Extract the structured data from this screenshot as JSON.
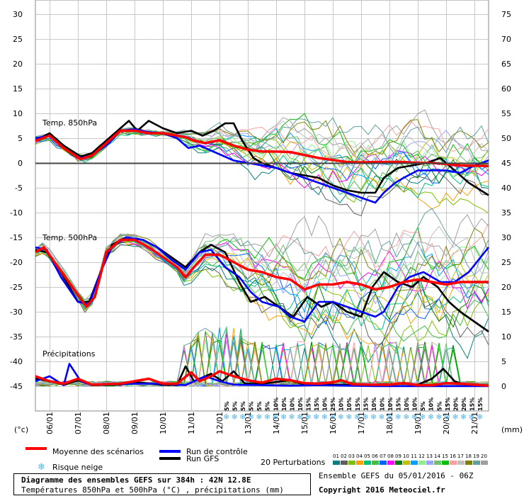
{
  "chart_data": {
    "type": "line",
    "left_axis": {
      "unit": "(°c)",
      "ticks": [
        30,
        25,
        20,
        15,
        10,
        5,
        0,
        -5,
        -10,
        -15,
        -20,
        -25,
        -30,
        -35,
        -40,
        -45
      ]
    },
    "right_axis": {
      "unit": "(mm)",
      "ticks": [
        75,
        70,
        65,
        60,
        55,
        50,
        45,
        40,
        35,
        30,
        25,
        20,
        15,
        10,
        5,
        0
      ]
    },
    "dates": [
      "06/01",
      "07/01",
      "08/01",
      "09/01",
      "10/01",
      "11/01",
      "12/01",
      "13/01",
      "14/01",
      "15/01",
      "16/01",
      "17/01",
      "18/01",
      "19/01",
      "20/01",
      "21/01"
    ],
    "x_range_days": [
      0,
      16
    ],
    "panels": {
      "t850": {
        "label": "Temp. 850hPa",
        "zero_line": 0
      },
      "t500": {
        "label": "Temp. 500hPa"
      },
      "precip": {
        "label": "Précipitations"
      }
    },
    "snow_risk_pct": [
      "5%",
      "5%",
      "5%",
      "5%",
      "5%",
      "5%",
      "10%",
      "10%",
      "10%",
      "10%",
      "15%",
      "15%",
      "10%",
      "25%",
      "10%",
      "10%",
      "15%",
      "15%",
      "10%",
      "10%",
      "10%",
      "15%",
      "10%",
      "10%",
      "5%",
      "10%",
      "5%",
      "15%",
      "20%",
      "20%",
      "15%",
      "15%"
    ],
    "series": [
      {
        "name": "Moyenne des scénarios",
        "color": "#ff0000",
        "t850": [
          [
            0,
            4.5
          ],
          [
            0.5,
            5.5
          ],
          [
            1,
            3
          ],
          [
            1.6,
            0.8
          ],
          [
            2,
            1.5
          ],
          [
            2.6,
            4.5
          ],
          [
            3,
            6.5
          ],
          [
            3.5,
            6.5
          ],
          [
            4,
            6
          ],
          [
            4.5,
            6
          ],
          [
            5,
            5.5
          ],
          [
            5.3,
            5.2
          ],
          [
            5.6,
            4.5
          ],
          [
            6,
            4
          ],
          [
            6.5,
            4.6
          ],
          [
            7,
            3.5
          ],
          [
            7.5,
            2.7
          ],
          [
            8,
            2.3
          ],
          [
            8.5,
            2.3
          ],
          [
            9,
            2.2
          ],
          [
            9.5,
            1.6
          ],
          [
            10,
            1
          ],
          [
            10.5,
            0.6
          ],
          [
            11,
            0.2
          ],
          [
            11.5,
            0.1
          ],
          [
            12,
            0.2
          ],
          [
            12.5,
            0.2
          ],
          [
            13,
            0.2
          ],
          [
            13.5,
            0
          ],
          [
            14,
            0
          ],
          [
            14.5,
            -0.2
          ],
          [
            15,
            -0.5
          ],
          [
            16,
            -0.6
          ]
        ],
        "t500": [
          [
            0,
            -18
          ],
          [
            0.3,
            -17
          ],
          [
            0.8,
            -21
          ],
          [
            1.3,
            -25
          ],
          [
            1.8,
            -29
          ],
          [
            2.1,
            -27
          ],
          [
            2.5,
            -18
          ],
          [
            3,
            -15.5
          ],
          [
            3.5,
            -15.5
          ],
          [
            4,
            -17
          ],
          [
            4.5,
            -19
          ],
          [
            5,
            -21
          ],
          [
            5.3,
            -23
          ],
          [
            5.6,
            -21
          ],
          [
            6,
            -18.5
          ],
          [
            6.5,
            -18.5
          ],
          [
            7,
            -20
          ],
          [
            7.5,
            -21.5
          ],
          [
            8,
            -22
          ],
          [
            8.5,
            -23
          ],
          [
            9,
            -23.5
          ],
          [
            9.5,
            -25.5
          ],
          [
            10,
            -24.5
          ],
          [
            10.5,
            -24.5
          ],
          [
            11,
            -24
          ],
          [
            11.5,
            -24.5
          ],
          [
            12,
            -25.5
          ],
          [
            12.5,
            -25
          ],
          [
            13,
            -24
          ],
          [
            13.5,
            -23.5
          ],
          [
            14,
            -24
          ],
          [
            14.5,
            -24.5
          ],
          [
            15,
            -24
          ],
          [
            16,
            -24
          ]
        ],
        "precip": [
          [
            0,
            2
          ],
          [
            0.5,
            1
          ],
          [
            1,
            0.5
          ],
          [
            1.5,
            1.5
          ],
          [
            2,
            0.3
          ],
          [
            3,
            0.5
          ],
          [
            3.5,
            1
          ],
          [
            4,
            1.5
          ],
          [
            4.5,
            0.5
          ],
          [
            5,
            0.5
          ],
          [
            5.5,
            2.8
          ],
          [
            5.8,
            1
          ],
          [
            6.2,
            2
          ],
          [
            6.5,
            3
          ],
          [
            7,
            2
          ],
          [
            7.5,
            1.2
          ],
          [
            8,
            0.7
          ],
          [
            8.5,
            1.5
          ],
          [
            9,
            1.2
          ],
          [
            9.5,
            0.6
          ],
          [
            10,
            0.5
          ],
          [
            10.5,
            0.8
          ],
          [
            10.8,
            1.2
          ],
          [
            11.2,
            0.4
          ],
          [
            11.8,
            0.3
          ],
          [
            12.5,
            0.3
          ],
          [
            13,
            0.6
          ],
          [
            13.5,
            0.2
          ],
          [
            14,
            0.2
          ],
          [
            14.5,
            0.6
          ],
          [
            15,
            0.5
          ],
          [
            16,
            0.1
          ]
        ]
      },
      {
        "name": "Run de contrôle",
        "color": "#0000ff",
        "t850": [
          [
            0,
            5
          ],
          [
            0.5,
            5.5
          ],
          [
            1,
            3
          ],
          [
            1.6,
            1
          ],
          [
            2,
            1.5
          ],
          [
            2.6,
            4
          ],
          [
            3,
            6.5
          ],
          [
            3.5,
            6.8
          ],
          [
            4,
            6.2
          ],
          [
            4.5,
            6
          ],
          [
            5,
            5
          ],
          [
            5.4,
            3
          ],
          [
            5.8,
            3.5
          ],
          [
            6.2,
            2.5
          ],
          [
            6.6,
            1.5
          ],
          [
            7,
            0.5
          ],
          [
            7.5,
            0
          ],
          [
            8,
            -0.5
          ],
          [
            8.5,
            -1
          ],
          [
            9,
            -2
          ],
          [
            9.5,
            -3
          ],
          [
            10,
            -4
          ],
          [
            10.5,
            -5
          ],
          [
            11,
            -6
          ],
          [
            11.5,
            -7
          ],
          [
            12,
            -8
          ],
          [
            12.3,
            -6
          ],
          [
            12.7,
            -4
          ],
          [
            13,
            -3
          ],
          [
            13.5,
            -1.5
          ],
          [
            14,
            -1.5
          ],
          [
            14.5,
            -1.5
          ],
          [
            15,
            -2
          ],
          [
            15.5,
            -0.5
          ],
          [
            16,
            0.5
          ]
        ],
        "t500": [
          [
            0,
            -17
          ],
          [
            0.4,
            -17.5
          ],
          [
            0.9,
            -23
          ],
          [
            1.5,
            -28
          ],
          [
            1.9,
            -28.5
          ],
          [
            2.3,
            -22
          ],
          [
            2.7,
            -17
          ],
          [
            3.2,
            -15
          ],
          [
            3.8,
            -15.5
          ],
          [
            4.3,
            -17
          ],
          [
            4.8,
            -19.5
          ],
          [
            5.3,
            -21.5
          ],
          [
            5.8,
            -18
          ],
          [
            6.2,
            -17.5
          ],
          [
            6.7,
            -21
          ],
          [
            7.2,
            -23
          ],
          [
            7.6,
            -26
          ],
          [
            8,
            -28
          ],
          [
            8.6,
            -29
          ],
          [
            9,
            -31
          ],
          [
            9.5,
            -32
          ],
          [
            10,
            -28
          ],
          [
            10.5,
            -28
          ],
          [
            11,
            -29
          ],
          [
            11.5,
            -30
          ],
          [
            12,
            -31
          ],
          [
            12.3,
            -30
          ],
          [
            12.8,
            -25
          ],
          [
            13.2,
            -23
          ],
          [
            13.7,
            -22
          ],
          [
            14.3,
            -24
          ],
          [
            14.8,
            -24
          ],
          [
            15.3,
            -22
          ],
          [
            16,
            -17
          ]
        ],
        "precip": [
          [
            0,
            1
          ],
          [
            0.5,
            2
          ],
          [
            1,
            0.2
          ],
          [
            1.2,
            4.5
          ],
          [
            1.6,
            1
          ],
          [
            2,
            0.2
          ],
          [
            3.5,
            0.5
          ],
          [
            4.5,
            0.5
          ],
          [
            5.3,
            0.2
          ],
          [
            5.6,
            1
          ],
          [
            6,
            2
          ],
          [
            6.5,
            1
          ],
          [
            7,
            0.3
          ],
          [
            8,
            0.2
          ],
          [
            9,
            0.1
          ],
          [
            10,
            0.2
          ],
          [
            11,
            0.1
          ],
          [
            12,
            0
          ],
          [
            13,
            0
          ],
          [
            14,
            0
          ],
          [
            15,
            0
          ],
          [
            16,
            0
          ]
        ]
      },
      {
        "name": "Run GFS",
        "color": "#000000",
        "t850": [
          [
            0,
            4.5
          ],
          [
            0.5,
            6
          ],
          [
            1,
            3.5
          ],
          [
            1.6,
            1.3
          ],
          [
            2,
            2
          ],
          [
            2.6,
            5
          ],
          [
            3,
            7
          ],
          [
            3.3,
            8.5
          ],
          [
            3.6,
            6.5
          ],
          [
            4,
            8.5
          ],
          [
            4.5,
            7
          ],
          [
            5,
            6
          ],
          [
            5.5,
            6.5
          ],
          [
            5.9,
            5.5
          ],
          [
            6.3,
            6.5
          ],
          [
            6.7,
            8
          ],
          [
            7,
            8
          ],
          [
            7.3,
            4.5
          ],
          [
            7.7,
            1
          ],
          [
            8,
            0
          ],
          [
            8.5,
            -1
          ],
          [
            9,
            -2
          ],
          [
            9.5,
            -2.5
          ],
          [
            10,
            -3
          ],
          [
            10.5,
            -4.5
          ],
          [
            11,
            -5.5
          ],
          [
            11.5,
            -6
          ],
          [
            12,
            -6
          ],
          [
            12.3,
            -3
          ],
          [
            12.8,
            -1
          ],
          [
            13.3,
            -0.5
          ],
          [
            13.8,
            0
          ],
          [
            14.3,
            1
          ],
          [
            14.8,
            -1.5
          ],
          [
            15.3,
            -4
          ],
          [
            16,
            -6.5
          ]
        ],
        "t500": [
          [
            0,
            -17.5
          ],
          [
            0.4,
            -18
          ],
          [
            0.9,
            -22
          ],
          [
            1.5,
            -28
          ],
          [
            1.9,
            -28
          ],
          [
            2.3,
            -22
          ],
          [
            2.7,
            -16.5
          ],
          [
            3.2,
            -15
          ],
          [
            3.8,
            -15.5
          ],
          [
            4.3,
            -17
          ],
          [
            4.8,
            -19
          ],
          [
            5.3,
            -21
          ],
          [
            5.8,
            -18
          ],
          [
            6.2,
            -16.5
          ],
          [
            6.7,
            -18
          ],
          [
            7.2,
            -24
          ],
          [
            7.6,
            -28
          ],
          [
            8.1,
            -27
          ],
          [
            8.6,
            -29
          ],
          [
            9.1,
            -31
          ],
          [
            9.6,
            -27
          ],
          [
            10.1,
            -29
          ],
          [
            10.5,
            -28
          ],
          [
            11,
            -30
          ],
          [
            11.5,
            -31
          ],
          [
            11.9,
            -25
          ],
          [
            12.3,
            -22
          ],
          [
            12.8,
            -24
          ],
          [
            13.3,
            -25
          ],
          [
            13.7,
            -23
          ],
          [
            14.2,
            -25
          ],
          [
            14.6,
            -28
          ],
          [
            15,
            -30
          ],
          [
            15.5,
            -32
          ],
          [
            16,
            -34
          ]
        ],
        "precip": [
          [
            0,
            1.5
          ],
          [
            0.5,
            1
          ],
          [
            1,
            0.3
          ],
          [
            1.5,
            1.2
          ],
          [
            2,
            0.2
          ],
          [
            3,
            0.3
          ],
          [
            3.5,
            0.8
          ],
          [
            4.5,
            0.3
          ],
          [
            5,
            0.2
          ],
          [
            5.3,
            4
          ],
          [
            5.6,
            1
          ],
          [
            6.2,
            2.5
          ],
          [
            6.6,
            1
          ],
          [
            7,
            3
          ],
          [
            7.4,
            0.5
          ],
          [
            8,
            0.5
          ],
          [
            9,
            1.2
          ],
          [
            9.5,
            0.3
          ],
          [
            10.5,
            0.3
          ],
          [
            11.5,
            0.2
          ],
          [
            13,
            0.5
          ],
          [
            13.5,
            0.3
          ],
          [
            14,
            1.5
          ],
          [
            14.4,
            3.5
          ],
          [
            14.8,
            1
          ],
          [
            15.2,
            0.2
          ],
          [
            16,
            0.1
          ]
        ]
      }
    ]
  },
  "legend": {
    "mean_label": "Moyenne des scénarios",
    "control_label": "Run de contrôle",
    "gfs_label": "Run GFS",
    "snow_label": "Risque neige",
    "perturb_label": "20 Perturbations",
    "perturb_numbers": [
      "01",
      "02",
      "03",
      "04",
      "05",
      "06",
      "07",
      "08",
      "09",
      "10",
      "11",
      "12",
      "13",
      "14",
      "15",
      "16",
      "17",
      "18",
      "19",
      "20"
    ],
    "perturb_colors": [
      "#008080",
      "#606060",
      "#80c000",
      "#ffa000",
      "#00c080",
      "#40c040",
      "#0060ff",
      "#ff00ff",
      "#008000",
      "#c0c000",
      "#00a0ff",
      "#90ee90",
      "#a0a0ff",
      "#70c070",
      "#00c000",
      "#ffa0a0",
      "#c0c0c0",
      "#808000",
      "#60a0a0",
      "#a0a0a0"
    ]
  },
  "footer": {
    "title": "Diagramme des ensembles GEFS sur 384h : 42N 12.8E",
    "subtitle": "Températures 850hPa et 500hPa (°C) , précipitations (mm)",
    "ensemble": "Ensemble GEFS du 05/01/2016 - 06Z",
    "copyright": "Copyright 2016 Meteociel.fr"
  }
}
